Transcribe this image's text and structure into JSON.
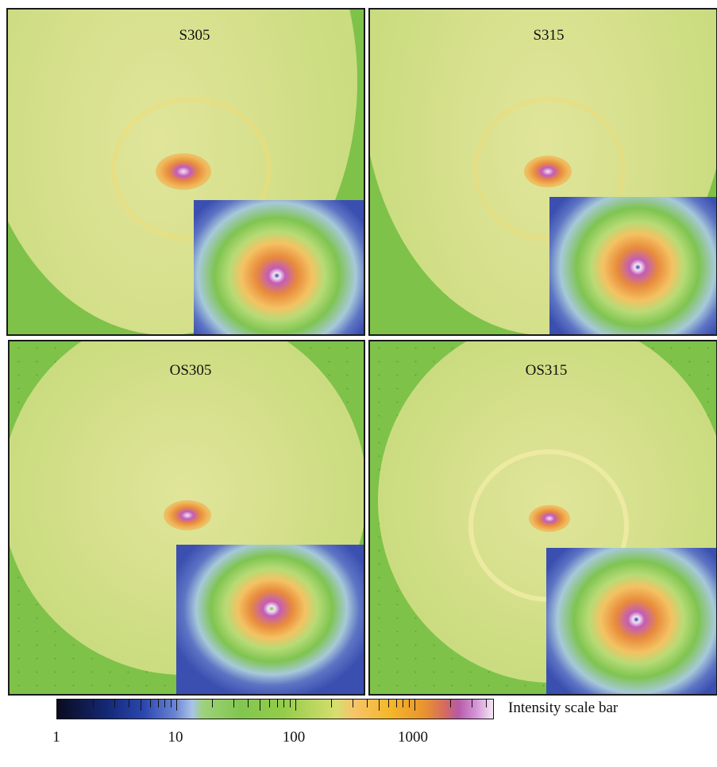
{
  "panels": [
    {
      "id": "s305",
      "label": "S305"
    },
    {
      "id": "s315",
      "label": "S315"
    },
    {
      "id": "os305",
      "label": "OS305"
    },
    {
      "id": "os315",
      "label": "OS315"
    }
  ],
  "scale_bar": {
    "title": "Intensity scale bar",
    "scale": "log",
    "range": [
      1,
      5000
    ],
    "tick_labels": [
      "1",
      "10",
      "100",
      "1000"
    ],
    "colors": {
      "background": "#7ec24a",
      "halo": "#cfe08a",
      "center_orange": "#f0a640",
      "center_magenta": "#c35cb8",
      "inset_blue": "#3b4fb0"
    }
  }
}
